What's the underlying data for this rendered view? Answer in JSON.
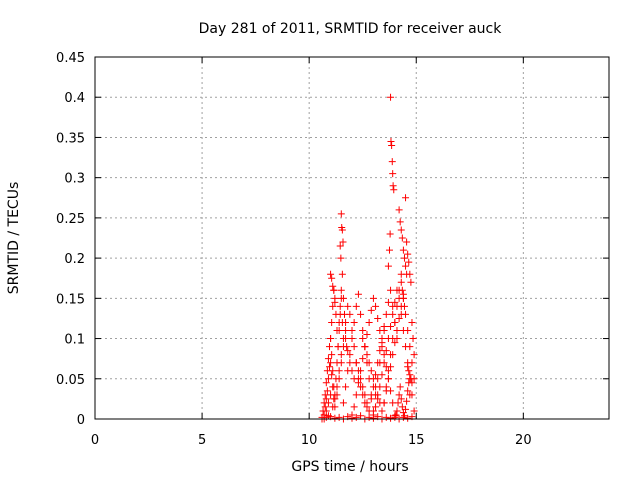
{
  "chart_data": {
    "type": "scatter",
    "title": "Day 281 of 2011, SRMTID for receiver auck",
    "xlabel": "GPS time / hours",
    "ylabel": "SRMTID / TECUs",
    "xlim": [
      0,
      24
    ],
    "ylim": [
      0,
      0.45
    ],
    "xticks": [
      0,
      5,
      10,
      15,
      20
    ],
    "yticks": [
      0,
      0.05,
      0.1,
      0.15,
      0.2,
      0.25,
      0.3,
      0.35,
      0.4,
      0.45
    ],
    "grid": true,
    "marker": "plus",
    "color": "#ff0000",
    "series": [
      {
        "x": [
          10.6,
          10.65,
          10.7,
          10.75,
          10.8,
          10.85,
          10.9,
          10.95,
          11.0,
          11.05,
          11.1,
          11.15,
          11.2,
          11.25,
          11.3,
          11.35,
          11.4,
          11.45,
          11.5,
          11.55,
          10.7,
          10.75,
          10.8,
          10.85,
          10.9,
          10.95,
          11.0,
          11.05,
          11.1,
          11.15,
          11.2,
          11.3,
          11.4,
          11.5,
          11.6,
          11.7,
          11.8,
          11.9,
          12.0,
          12.1,
          10.8,
          10.9,
          11.0,
          11.1,
          11.2,
          11.3,
          11.4,
          11.5,
          11.6,
          11.7,
          11.8,
          11.9,
          12.0,
          12.1,
          12.2,
          12.3,
          12.4,
          12.5,
          12.6,
          12.7,
          11.0,
          11.05,
          11.1,
          11.15,
          11.2,
          11.25,
          11.3,
          11.35,
          11.4,
          11.45,
          11.5,
          11.55,
          11.6,
          11.65,
          11.7,
          11.75,
          11.5,
          11.52,
          11.55,
          11.58,
          11.45,
          11.48,
          11.0,
          11.05,
          11.1,
          11.15,
          11.2,
          11.6,
          11.7,
          11.8,
          11.9,
          12.0,
          12.1,
          12.2,
          12.3,
          12.4,
          12.5,
          12.6,
          12.7,
          12.8,
          12.9,
          13.0,
          13.1,
          13.2,
          13.3,
          13.4,
          13.5,
          12.0,
          12.1,
          12.2,
          12.3,
          12.4,
          12.5,
          12.6,
          12.7,
          12.8,
          12.9,
          13.0,
          13.1,
          13.2,
          13.3,
          13.4,
          13.5,
          13.6,
          13.7,
          13.8,
          13.9,
          12.2,
          12.3,
          12.4,
          12.5,
          12.6,
          12.7,
          12.8,
          12.9,
          13.0,
          13.1,
          13.2,
          13.3,
          13.4,
          13.5,
          13.6,
          13.7,
          13.8,
          13.9,
          14.0,
          14.1,
          12.5,
          12.6,
          12.7,
          12.8,
          12.9,
          13.0,
          13.1,
          13.2,
          13.3,
          13.4,
          13.5,
          13.6,
          13.7,
          13.8,
          13.9,
          14.0,
          14.1,
          14.2,
          14.3,
          14.4,
          13.0,
          13.1,
          13.2,
          13.3,
          13.4,
          13.5,
          13.6,
          13.7,
          13.8,
          13.9,
          14.0,
          14.1,
          14.2,
          14.3,
          14.4,
          14.5,
          14.6,
          14.7,
          14.8,
          14.9,
          13.5,
          13.6,
          13.7,
          13.8,
          13.9,
          14.0,
          14.1,
          14.2,
          14.3,
          14.4,
          14.5,
          14.6,
          14.7,
          14.8,
          14.9,
          13.8,
          13.82,
          13.85,
          13.88,
          13.9,
          13.92,
          13.95,
          13.78,
          13.75,
          13.7,
          14.2,
          14.25,
          14.3,
          14.35,
          14.4,
          14.45,
          14.5,
          14.55,
          14.3,
          14.35,
          14.4,
          14.45,
          14.5,
          14.55,
          14.6,
          14.65,
          14.7,
          14.75,
          14.8,
          14.85,
          14.9,
          14.6,
          14.65,
          14.7,
          14.75,
          14.8,
          14.0,
          14.05,
          14.1,
          14.15,
          14.2,
          14.25,
          14.3,
          14.35,
          14.4,
          14.45,
          14.5,
          14.55,
          14.6,
          14.65,
          14.7,
          10.6,
          10.7,
          10.8,
          10.9,
          11.0,
          11.2,
          11.4,
          11.6,
          11.8,
          12.0,
          12.2,
          12.4,
          12.6,
          12.8,
          13.0,
          13.2,
          13.4,
          13.6,
          13.8,
          14.0,
          14.2,
          14.4,
          14.6,
          14.8
        ],
        "y": [
          0.002,
          0.01,
          0.02,
          0.03,
          0.045,
          0.06,
          0.075,
          0.09,
          0.1,
          0.08,
          0.06,
          0.04,
          0.03,
          0.05,
          0.07,
          0.09,
          0.11,
          0.13,
          0.15,
          0.12,
          0.005,
          0.015,
          0.025,
          0.035,
          0.05,
          0.065,
          0.07,
          0.055,
          0.04,
          0.025,
          0.015,
          0.03,
          0.05,
          0.07,
          0.09,
          0.1,
          0.085,
          0.07,
          0.06,
          0.05,
          0.01,
          0.02,
          0.03,
          0.015,
          0.025,
          0.04,
          0.06,
          0.08,
          0.1,
          0.12,
          0.14,
          0.13,
          0.11,
          0.09,
          0.07,
          0.05,
          0.04,
          0.03,
          0.02,
          0.015,
          0.1,
          0.12,
          0.14,
          0.16,
          0.15,
          0.13,
          0.11,
          0.09,
          0.12,
          0.14,
          0.16,
          0.18,
          0.15,
          0.13,
          0.11,
          0.09,
          0.255,
          0.238,
          0.235,
          0.22,
          0.215,
          0.2,
          0.18,
          0.175,
          0.165,
          0.16,
          0.145,
          0.02,
          0.04,
          0.06,
          0.08,
          0.1,
          0.12,
          0.14,
          0.155,
          0.13,
          0.11,
          0.09,
          0.07,
          0.05,
          0.03,
          0.01,
          0.03,
          0.05,
          0.07,
          0.09,
          0.11,
          0.005,
          0.015,
          0.03,
          0.045,
          0.06,
          0.075,
          0.09,
          0.105,
          0.12,
          0.135,
          0.15,
          0.14,
          0.125,
          0.11,
          0.095,
          0.08,
          0.065,
          0.05,
          0.035,
          0.02,
          0.07,
          0.06,
          0.05,
          0.04,
          0.03,
          0.02,
          0.01,
          0.025,
          0.04,
          0.055,
          0.07,
          0.085,
          0.1,
          0.115,
          0.13,
          0.145,
          0.16,
          0.14,
          0.12,
          0.1,
          0.1,
          0.09,
          0.08,
          0.07,
          0.06,
          0.05,
          0.04,
          0.03,
          0.02,
          0.01,
          0.02,
          0.035,
          0.05,
          0.065,
          0.08,
          0.095,
          0.11,
          0.125,
          0.14,
          0.155,
          0.005,
          0.015,
          0.025,
          0.04,
          0.055,
          0.07,
          0.085,
          0.1,
          0.115,
          0.13,
          0.145,
          0.16,
          0.15,
          0.13,
          0.11,
          0.09,
          0.07,
          0.05,
          0.03,
          0.01,
          0.02,
          0.04,
          0.06,
          0.08,
          0.1,
          0.12,
          0.14,
          0.16,
          0.18,
          0.15,
          0.13,
          0.11,
          0.09,
          0.07,
          0.05,
          0.4,
          0.345,
          0.34,
          0.32,
          0.305,
          0.29,
          0.285,
          0.23,
          0.21,
          0.19,
          0.26,
          0.245,
          0.235,
          0.225,
          0.21,
          0.2,
          0.19,
          0.18,
          0.17,
          0.16,
          0.15,
          0.14,
          0.275,
          0.22,
          0.205,
          0.195,
          0.18,
          0.17,
          0.12,
          0.1,
          0.08,
          0.065,
          0.06,
          0.055,
          0.05,
          0.045,
          0.002,
          0.005,
          0.01,
          0.02,
          0.03,
          0.04,
          0.025,
          0.015,
          0.008,
          0.004,
          0.012,
          0.022,
          0.035,
          0.045,
          0.03,
          0.0,
          0.0,
          0.002,
          0.004,
          0.003,
          0.001,
          0.002,
          0.0,
          0.003,
          0.001,
          0.002,
          0.004,
          0.0,
          0.002,
          0.001,
          0.003,
          0.0,
          0.002,
          0.001,
          0.004,
          0.0,
          0.002,
          0.001,
          0.003
        ]
      }
    ]
  }
}
